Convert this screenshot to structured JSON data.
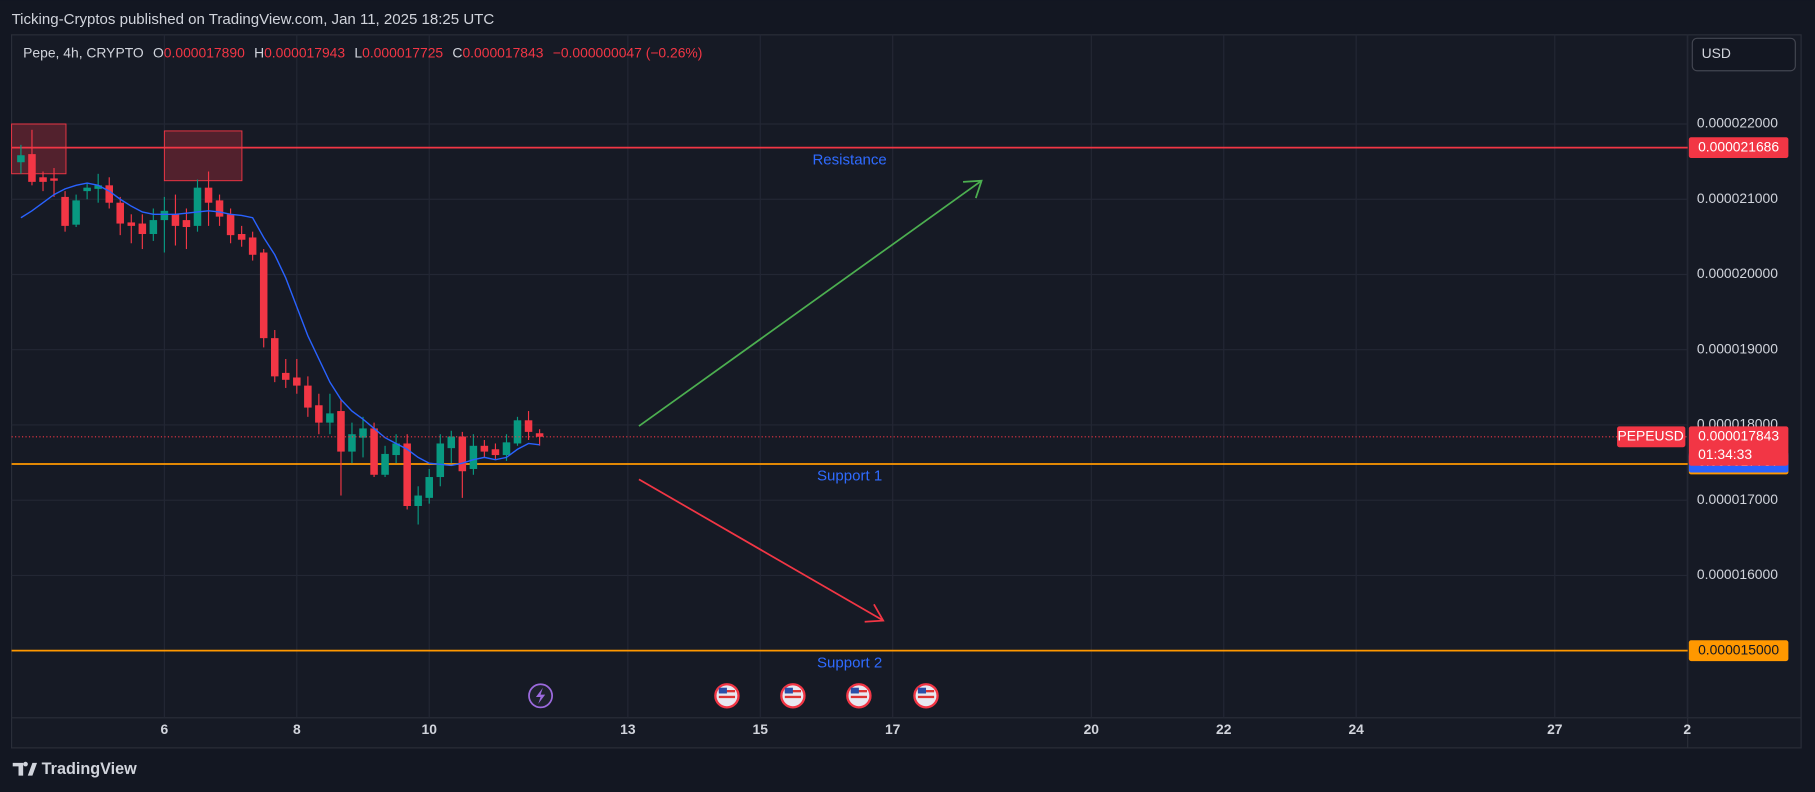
{
  "header": {
    "title": "Ticking-Cryptos published on TradingView.com, Jan 11, 2025 18:25 UTC"
  },
  "legend": {
    "symbol": "Pepe, 4h, CRYPTO",
    "items": [
      {
        "key": "O",
        "value": "0.000017890"
      },
      {
        "key": "H",
        "value": "0.000017943"
      },
      {
        "key": "L",
        "value": "0.000017725"
      },
      {
        "key": "C",
        "value": "0.000017843"
      }
    ],
    "change": "−0.000000047 (−0.26%)"
  },
  "currency_button": "USD",
  "footer": {
    "brand": "TradingView"
  },
  "chart_data": {
    "type": "candlestick",
    "x": [
      3.833,
      4,
      4.167,
      4.333,
      4.5,
      4.667,
      4.833,
      5,
      5.167,
      5.333,
      5.5,
      5.667,
      5.833,
      6,
      6.167,
      6.333,
      6.5,
      6.667,
      6.833,
      7,
      7.167,
      7.333,
      7.5,
      7.667,
      7.833,
      8,
      8.167,
      8.333,
      8.5,
      8.667,
      8.833,
      9,
      9.167,
      9.333,
      9.5,
      9.667,
      9.833,
      10,
      10.167,
      10.333,
      10.5,
      10.667,
      10.833,
      11,
      11.167,
      11.333,
      11.5,
      11.667
    ],
    "series": [
      {
        "up_color": "#089981",
        "down_color": "#f23645",
        "open": [
          2.1492e-05,
          2.16e-05,
          2.1292e-05,
          2.1277e-05,
          2.1031e-05,
          2.0662e-05,
          2.1108e-05,
          2.1138e-05,
          2.1185e-05,
          2.0954e-05,
          2.0692e-05,
          2.0677e-05,
          2.0538e-05,
          2.0723e-05,
          2.08e-05,
          2.0723e-05,
          2.0646e-05,
          2.1154e-05,
          2.0985e-05,
          2.08e-05,
          2.0538e-05,
          2.0492e-05,
          2.0292e-05,
          1.9154e-05,
          1.8692e-05,
          1.8631e-05,
          1.8523e-05,
          1.8262e-05,
          1.8031e-05,
          1.8185e-05,
          1.7646e-05,
          1.7831e-05,
          1.7954e-05,
          1.7338e-05,
          1.76e-05,
          1.7754e-05,
          1.6923e-05,
          1.7031e-05,
          1.7308e-05,
          1.7692e-05,
          1.7846e-05,
          1.7415e-05,
          1.7723e-05,
          1.7677e-05,
          1.76e-05,
          1.7754e-05,
          1.8062e-05,
          1.789e-05
        ],
        "high": [
          2.1723e-05,
          2.1923e-05,
          2.1369e-05,
          2.1415e-05,
          2.1108e-05,
          2.1062e-05,
          2.1215e-05,
          2.1338e-05,
          2.1292e-05,
          2.1031e-05,
          2.08e-05,
          2.08e-05,
          2.0877e-05,
          2.1031e-05,
          2.1062e-05,
          2.0877e-05,
          2.1262e-05,
          2.1369e-05,
          2.1062e-05,
          2.0877e-05,
          2.0646e-05,
          2.0569e-05,
          2.0338e-05,
          1.9262e-05,
          1.8877e-05,
          1.8877e-05,
          1.8646e-05,
          1.8415e-05,
          1.8415e-05,
          1.8338e-05,
          1.8031e-05,
          1.8108e-05,
          1.8031e-05,
          1.7723e-05,
          1.7877e-05,
          1.7877e-05,
          1.7185e-05,
          1.7415e-05,
          1.7877e-05,
          1.7923e-05,
          1.7908e-05,
          1.7877e-05,
          1.78e-05,
          1.7754e-05,
          1.7877e-05,
          1.8108e-05,
          1.8185e-05,
          1.7943e-05
        ],
        "low": [
          2.1338e-05,
          2.1185e-05,
          2.1108e-05,
          2.1031e-05,
          2.0569e-05,
          2.0631e-05,
          2.1e-05,
          2.0954e-05,
          2.0877e-05,
          2.0523e-05,
          2.0415e-05,
          2.0338e-05,
          2.0446e-05,
          2.0292e-05,
          2.0385e-05,
          2.0338e-05,
          2.0569e-05,
          2.0646e-05,
          2.0646e-05,
          2.0415e-05,
          2.0369e-05,
          2.0185e-05,
          1.9031e-05,
          1.8569e-05,
          1.8492e-05,
          1.8415e-05,
          1.8108e-05,
          1.7877e-05,
          1.7877e-05,
          1.7062e-05,
          1.7492e-05,
          1.7569e-05,
          1.7308e-05,
          1.7308e-05,
          1.7492e-05,
          1.6877e-05,
          1.6677e-05,
          1.6954e-05,
          1.7185e-05,
          1.7492e-05,
          1.7031e-05,
          1.7338e-05,
          1.7569e-05,
          1.7538e-05,
          1.7523e-05,
          1.7723e-05,
          1.78e-05,
          1.7725e-05
        ],
        "close": [
          2.1585e-05,
          2.1231e-05,
          2.1231e-05,
          2.1246e-05,
          2.0646e-05,
          2.0985e-05,
          2.1154e-05,
          2.1185e-05,
          2.0954e-05,
          2.0677e-05,
          2.0646e-05,
          2.0538e-05,
          2.0723e-05,
          2.0846e-05,
          2.0646e-05,
          2.0631e-05,
          2.1154e-05,
          2.0954e-05,
          2.0769e-05,
          2.0523e-05,
          2.0462e-05,
          2.0262e-05,
          1.9154e-05,
          1.8646e-05,
          1.86e-05,
          1.8523e-05,
          1.8231e-05,
          1.8031e-05,
          1.8154e-05,
          1.7646e-05,
          1.7877e-05,
          1.7954e-05,
          1.7338e-05,
          1.7615e-05,
          1.7754e-05,
          1.6923e-05,
          1.7062e-05,
          1.7308e-05,
          1.7754e-05,
          1.7846e-05,
          1.7385e-05,
          1.7723e-05,
          1.7646e-05,
          1.76e-05,
          1.7769e-05,
          1.8062e-05,
          1.7908e-05,
          1.7843e-05
        ]
      }
    ],
    "moving_average": {
      "color": "#2962ff",
      "values": [
        2.0754e-05,
        2.0846e-05,
        2.0954e-05,
        2.1062e-05,
        2.1138e-05,
        2.1185e-05,
        2.1215e-05,
        2.1185e-05,
        2.1108e-05,
        2.1e-05,
        2.0908e-05,
        2.0831e-05,
        2.08e-05,
        2.08e-05,
        2.08e-05,
        2.0815e-05,
        2.0831e-05,
        2.0846e-05,
        2.0831e-05,
        2.08e-05,
        2.0785e-05,
        2.0754e-05,
        2.0492e-05,
        2.0262e-05,
        1.9954e-05,
        1.9569e-05,
        1.9185e-05,
        1.8877e-05,
        1.8569e-05,
        1.8338e-05,
        1.8185e-05,
        1.8077e-05,
        1.7954e-05,
        1.7831e-05,
        1.7754e-05,
        1.7677e-05,
        1.7569e-05,
        1.7492e-05,
        1.7477e-05,
        1.7462e-05,
        1.7492e-05,
        1.7538e-05,
        1.7569e-05,
        1.7538e-05,
        1.7569e-05,
        1.7677e-05,
        1.7754e-05,
        1.7737e-05
      ]
    },
    "levels": [
      {
        "name": "Resistance",
        "value": 2.1686e-05,
        "color": "#f23645"
      },
      {
        "name": "Support 1",
        "value": 1.7481e-05,
        "color": "#ff9800"
      },
      {
        "name": "Support 2",
        "value": 1.5e-05,
        "value_label": "0.000015000",
        "color": "#ff9800"
      }
    ],
    "last_price": {
      "symbol": "PEPEUSD",
      "countdown": "01:34:33",
      "color": "#f23645"
    },
    "xlim": [
      3.692,
      29.007
    ],
    "xticks": [
      6,
      8,
      10,
      13,
      15,
      17,
      20,
      22,
      24,
      27,
      {
        "value": 29,
        "label": "2"
      }
    ],
    "ylim": [
      1.4108e-05,
      2.3185e-05
    ],
    "yticks": [
      {
        "value": 1.6e-05,
        "label": "0.000016000"
      },
      {
        "value": 1.7e-05,
        "label": "0.000017000"
      },
      {
        "value": 1.8e-05,
        "label": "0.000018000"
      },
      {
        "value": 1.9e-05,
        "label": "0.000019000"
      },
      {
        "value": 2e-05,
        "label": "0.000020000"
      },
      {
        "value": 2.1e-05,
        "label": "0.000021000"
      },
      {
        "value": 2.2e-05,
        "label": "0.000022000"
      }
    ],
    "grid": true
  }
}
